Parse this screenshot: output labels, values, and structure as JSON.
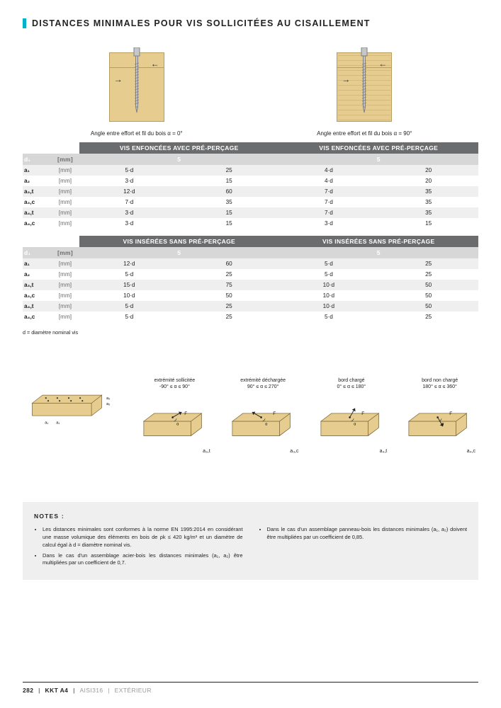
{
  "heading_bar_color": "#00b3c8",
  "heading": "DISTANCES MINIMALES POUR VIS SOLLICITÉES AU CISAILLEMENT",
  "diagram_left_caption": "Angle entre effort et fil du bois α = 0°",
  "diagram_right_caption": "Angle entre effort et fil du bois α = 90°",
  "wood_fill": "#e6cc8f",
  "screw_color": "#c5c7c9",
  "screw_outline": "#7f8284",
  "table_predrill": {
    "header_left": "VIS ENFONCÉES AVEC PRÉ-PERÇAGE",
    "header_right": "VIS ENFONCÉES AVEC PRÉ-PERÇAGE",
    "sub_unit": "[mm]",
    "sub_left": "5",
    "sub_right": "5",
    "d_label": "d₁",
    "d_unit": "[mm]",
    "rows": [
      {
        "p": "a₁",
        "u": "[mm]",
        "l1": "5·d",
        "l2": "25",
        "r1": "4·d",
        "r2": "20"
      },
      {
        "p": "a₂",
        "u": "[mm]",
        "l1": "3·d",
        "l2": "15",
        "r1": "4·d",
        "r2": "20"
      },
      {
        "p": "a₃,t",
        "u": "[mm]",
        "l1": "12·d",
        "l2": "60",
        "r1": "7·d",
        "r2": "35"
      },
      {
        "p": "a₃,c",
        "u": "[mm]",
        "l1": "7·d",
        "l2": "35",
        "r1": "7·d",
        "r2": "35"
      },
      {
        "p": "a₄,t",
        "u": "[mm]",
        "l1": "3·d",
        "l2": "15",
        "r1": "7·d",
        "r2": "35"
      },
      {
        "p": "a₄,c",
        "u": "[mm]",
        "l1": "3·d",
        "l2": "15",
        "r1": "3·d",
        "r2": "15"
      }
    ]
  },
  "table_nopredrill": {
    "header_left": "VIS INSÉRÉES SANS PRÉ-PERÇAGE",
    "header_right": "VIS INSÉRÉES SANS PRÉ-PERÇAGE",
    "sub_left": "5",
    "sub_right": "5",
    "rows": [
      {
        "p": "a₁",
        "u": "[mm]",
        "l1": "12·d",
        "l2": "60",
        "r1": "5·d",
        "r2": "25"
      },
      {
        "p": "a₂",
        "u": "[mm]",
        "l1": "5·d",
        "l2": "25",
        "r1": "5·d",
        "r2": "25"
      },
      {
        "p": "a₃,t",
        "u": "[mm]",
        "l1": "15·d",
        "l2": "75",
        "r1": "10·d",
        "r2": "50"
      },
      {
        "p": "a₃,c",
        "u": "[mm]",
        "l1": "10·d",
        "l2": "50",
        "r1": "10·d",
        "r2": "50"
      },
      {
        "p": "a₄,t",
        "u": "[mm]",
        "l1": "5·d",
        "l2": "25",
        "r1": "10·d",
        "r2": "50"
      },
      {
        "p": "a₄,c",
        "u": "[mm]",
        "l1": "5·d",
        "l2": "25",
        "r1": "5·d",
        "r2": "25"
      }
    ]
  },
  "table_footnote": "d = diamètre nominal vis",
  "edge": {
    "main_labels": {
      "a1": "a₁",
      "a2": "a₂"
    },
    "items": [
      {
        "t": "extrémité sollicitée",
        "s": "-90° ≤ α ≤ 90°",
        "lab": "a₃,t"
      },
      {
        "t": "extrémité déchargée",
        "s": "90° ≤ α ≤ 270°",
        "lab": "a₃,c"
      },
      {
        "t": "bord chargé",
        "s": "0° ≤ α ≤ 180°",
        "lab": "a₄,t"
      },
      {
        "t": "bord non chargé",
        "s": "180° ≤ α ≤ 360°",
        "lab": "a₄,c"
      }
    ]
  },
  "notes": {
    "title": "NOTES :",
    "col1": [
      "Les distances minimales sont conformes à la norme EN 1995:2014 en considérant une masse volumique des éléments en bois de ρk ≤ 420 kg/m³ et un diamètre de calcul égal à d = diamètre nominal vis.",
      "Dans le cas d'un assemblage acier-bois les distances minimales (a₁, a₂) être multipliées par un coefficient de 0,7."
    ],
    "col2": [
      "Dans le cas d'un assemblage panneau-bois les distances minimales (a₁, a₂) doivent être multipliées par un coefficient de 0,85."
    ]
  },
  "footer": {
    "page": "282",
    "code": "KKT A4",
    "std": "AISI316",
    "section": "EXTÉRIEUR"
  }
}
